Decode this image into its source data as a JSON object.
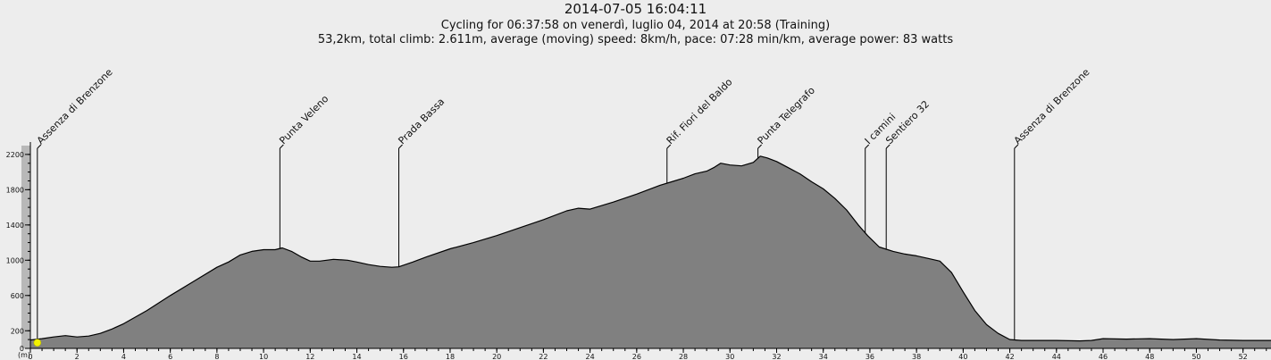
{
  "header": {
    "title": "2014-07-05 16:04:11",
    "subtitle": "Cycling for 06:37:58 on venerdì, luglio 04, 2014 at 20:58 (Training)",
    "summary": "53,2km, total climb: 2.611m, average (moving) speed: 8km/h, pace: 07:28 min/km, average power: 83 watts"
  },
  "chart_data": {
    "type": "area",
    "title": "2014-07-05 16:04:11",
    "xlabel": "",
    "ylabel": "(m)",
    "xlim": [
      0,
      53.2
    ],
    "ylim": [
      0,
      2300
    ],
    "x_ticks": [
      0,
      2,
      4,
      6,
      8,
      10,
      12,
      14,
      16,
      18,
      20,
      22,
      24,
      26,
      28,
      30,
      32,
      34,
      36,
      38,
      40,
      42,
      44,
      46,
      48,
      50,
      52
    ],
    "y_ticks": [
      0,
      200,
      600,
      1000,
      1400,
      1800,
      2200
    ],
    "colors": {
      "area": "#808080",
      "line": "#000000",
      "background": "#ededed",
      "position_marker": "#f2f200"
    },
    "current_position": {
      "x": 0.3,
      "y": 95
    },
    "series": [
      {
        "x": [
          0,
          0.5,
          1.0,
          1.5,
          2.0,
          2.5,
          3.0,
          3.5,
          4.0,
          5.0,
          6.0,
          7.0,
          8.0,
          8.5,
          9.0,
          9.5,
          10.0,
          10.5,
          10.8,
          11.2,
          11.6,
          12.0,
          12.4,
          13.0,
          13.6,
          14.0,
          14.5,
          15.0,
          15.5,
          15.8,
          16.4,
          17.0,
          18.0,
          19.0,
          20.0,
          21.0,
          22.0,
          23.0,
          23.5,
          24.0,
          25.0,
          26.0,
          27.0,
          27.5,
          28.0,
          28.5,
          29.0,
          29.3,
          29.6,
          30.0,
          30.5,
          31.0,
          31.3,
          31.6,
          32.0,
          32.5,
          33.0,
          33.5,
          34.0,
          34.5,
          35.0,
          35.5,
          35.9,
          36.4,
          37.0,
          37.5,
          38.0,
          38.5,
          39.0,
          39.5,
          40.0,
          40.5,
          41.0,
          41.5,
          42.0,
          42.5,
          43.0,
          44.0,
          45.0,
          45.5,
          46.0,
          47.0,
          48.0,
          49.0,
          50.0,
          51.0,
          52.0,
          53.2
        ],
        "y": [
          95,
          110,
          130,
          145,
          130,
          140,
          170,
          220,
          280,
          430,
          600,
          760,
          920,
          980,
          1060,
          1100,
          1120,
          1120,
          1140,
          1100,
          1040,
          990,
          990,
          1010,
          1000,
          980,
          950,
          930,
          920,
          925,
          980,
          1040,
          1130,
          1200,
          1280,
          1370,
          1460,
          1560,
          1590,
          1580,
          1660,
          1750,
          1850,
          1890,
          1930,
          1980,
          2010,
          2050,
          2100,
          2080,
          2070,
          2110,
          2180,
          2160,
          2120,
          2050,
          1980,
          1890,
          1810,
          1700,
          1570,
          1400,
          1280,
          1150,
          1100,
          1070,
          1050,
          1020,
          990,
          860,
          640,
          430,
          270,
          170,
          100,
          90,
          90,
          90,
          85,
          90,
          110,
          105,
          110,
          100,
          110,
          95,
          90,
          90
        ]
      }
    ],
    "annotations": [
      {
        "x": 0.3,
        "label": "Assenza di Brenzone"
      },
      {
        "x": 10.7,
        "label": "Punta Veleno"
      },
      {
        "x": 15.8,
        "label": "Prada Bassa"
      },
      {
        "x": 27.3,
        "label": "Rif. Fiori del Baldo"
      },
      {
        "x": 31.2,
        "label": "Punta Telegrafo"
      },
      {
        "x": 35.8,
        "label": "I camini"
      },
      {
        "x": 36.7,
        "label": "Sentiero 32"
      },
      {
        "x": 42.2,
        "label": "Assenza di Brenzone"
      }
    ]
  }
}
